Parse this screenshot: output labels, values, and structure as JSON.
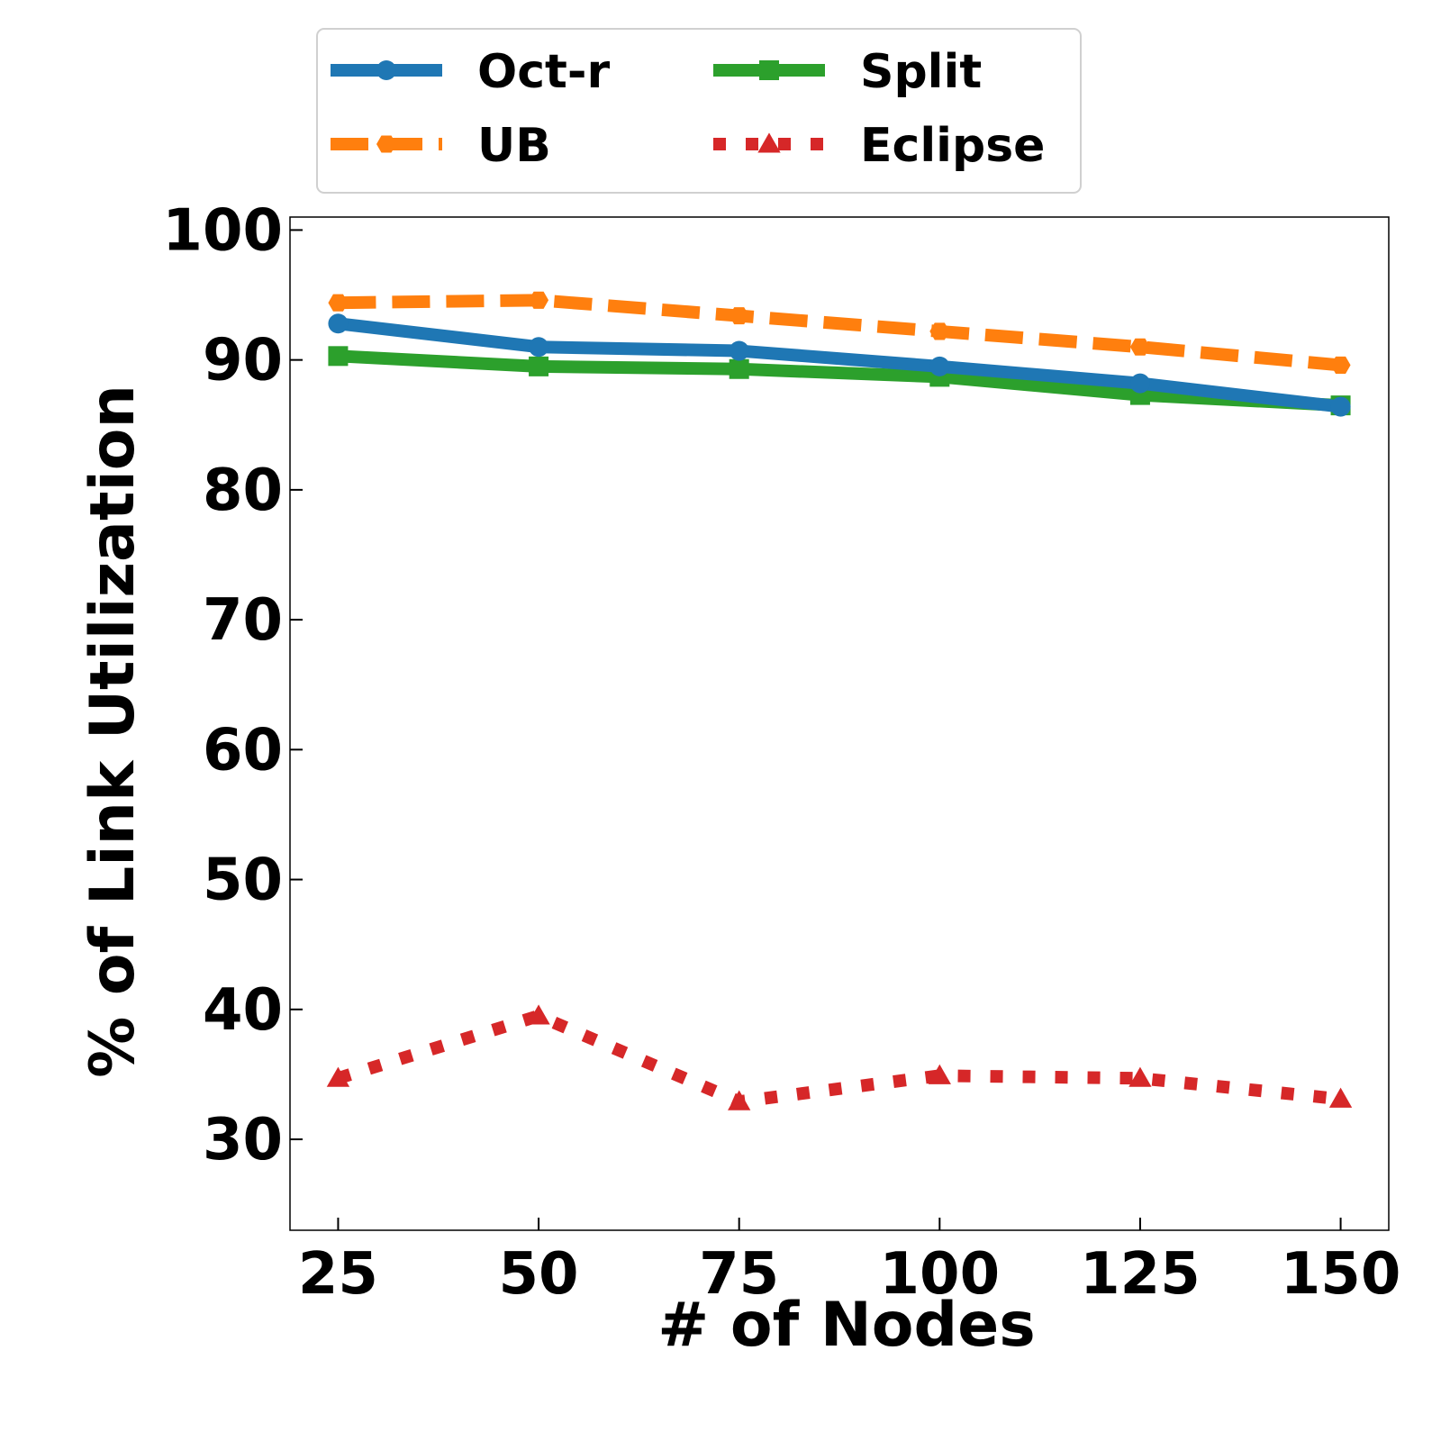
{
  "chart_data": {
    "type": "line",
    "title": "",
    "xlabel": "# of Nodes",
    "ylabel": "% of Link Utilization",
    "x": [
      25,
      50,
      75,
      100,
      125,
      150
    ],
    "xlim": [
      19,
      156
    ],
    "ylim": [
      23,
      101
    ],
    "yticks": [
      30,
      40,
      50,
      60,
      70,
      80,
      90,
      100
    ],
    "grid": false,
    "legend_position": "top-center",
    "series": [
      {
        "name": "Oct-r",
        "color": "#1f77b4",
        "line_style": "solid",
        "marker": "circle",
        "values": [
          92.8,
          91.0,
          90.7,
          89.5,
          88.2,
          86.4
        ]
      },
      {
        "name": "UB",
        "color": "#ff7f0e",
        "line_style": "dashed",
        "marker": "hexagon",
        "values": [
          94.4,
          94.6,
          93.4,
          92.2,
          91.0,
          89.6
        ]
      },
      {
        "name": "Split",
        "color": "#2ca02c",
        "line_style": "solid",
        "marker": "square",
        "values": [
          90.3,
          89.5,
          89.3,
          88.7,
          87.3,
          86.5
        ]
      },
      {
        "name": "Eclipse",
        "color": "#d62728",
        "line_style": "dotted",
        "marker": "triangle",
        "values": [
          34.7,
          39.5,
          32.9,
          34.9,
          34.7,
          33.1
        ]
      }
    ]
  }
}
